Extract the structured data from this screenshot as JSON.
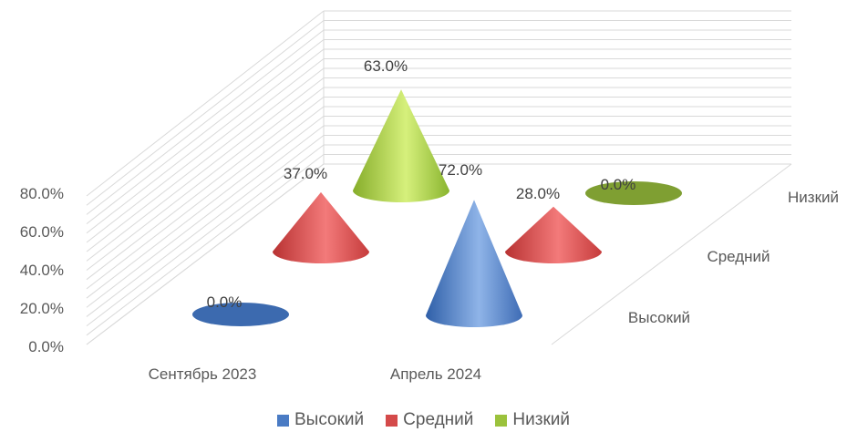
{
  "chart_data": {
    "type": "bar",
    "subtype": "3d-cone",
    "categories": [
      "Сентябрь 2023",
      "Апрель 2024"
    ],
    "series": [
      {
        "name": "Высокий",
        "values": [
          0.0,
          72.0
        ],
        "color": "#4a7bc4"
      },
      {
        "name": "Средний",
        "values": [
          37.0,
          28.0
        ],
        "color": "#d44a4a"
      },
      {
        "name": "Низкий",
        "values": [
          63.0,
          0.0
        ],
        "color": "#9bc23c"
      }
    ],
    "data_labels": [
      [
        "0.0%",
        "72.0%"
      ],
      [
        "37.0%",
        "28.0%"
      ],
      [
        "63.0%",
        "0.0%"
      ]
    ],
    "y_ticks": [
      "0.0%",
      "20.0%",
      "40.0%",
      "60.0%",
      "80.0%"
    ],
    "ylim": [
      0,
      80
    ],
    "grid": true,
    "legend_position": "bottom"
  }
}
